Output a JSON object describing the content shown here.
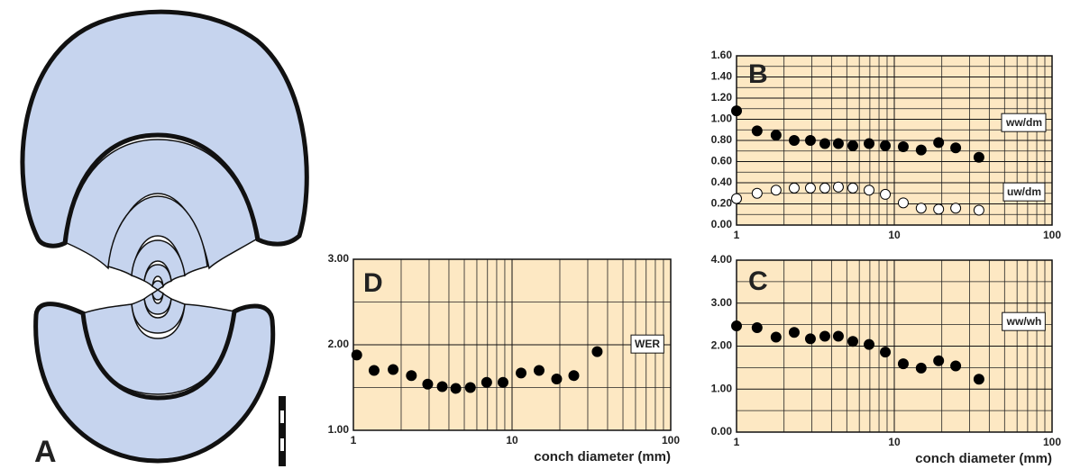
{
  "panel_a": {
    "label": "A"
  },
  "chart_data": [
    {
      "type": "scatter",
      "panel_label": "B",
      "xscale": "log",
      "x": [
        1.0,
        1.35,
        1.78,
        2.32,
        2.94,
        3.63,
        4.42,
        5.46,
        6.92,
        8.77,
        11.4,
        14.8,
        19.1,
        24.5,
        34.4
      ],
      "series": [
        {
          "name": "ww/dm",
          "color": "#000000",
          "values": [
            1.08,
            0.89,
            0.85,
            0.8,
            0.8,
            0.77,
            0.77,
            0.75,
            0.77,
            0.75,
            0.74,
            0.71,
            0.78,
            0.73,
            0.64
          ]
        },
        {
          "name": "uw/dm",
          "color": "#ffffff",
          "values": [
            0.25,
            0.3,
            0.33,
            0.35,
            0.35,
            0.35,
            0.36,
            0.35,
            0.33,
            0.29,
            0.21,
            0.16,
            0.15,
            0.16,
            0.14
          ]
        }
      ],
      "xlim": [
        1,
        100
      ],
      "xticks": [
        1,
        10,
        100
      ],
      "xminor": [
        2,
        3,
        4,
        5,
        6,
        7,
        8,
        9,
        20,
        30,
        40,
        50,
        60,
        70,
        80,
        90
      ],
      "ylim": [
        0,
        1.6
      ],
      "yticks": [
        {
          "value": 0,
          "label": "0.00"
        },
        {
          "value": 0.2,
          "label": "0.20"
        },
        {
          "value": 0.4,
          "label": "0.40"
        },
        {
          "value": 0.6,
          "label": "0.60"
        },
        {
          "value": 0.8,
          "label": "0.80"
        },
        {
          "value": 1.0,
          "label": "1.00"
        },
        {
          "value": 1.2,
          "label": "1.20"
        },
        {
          "value": 1.4,
          "label": "1.40"
        },
        {
          "value": 1.6,
          "label": "1.60"
        }
      ],
      "yminor": [
        0.1,
        0.3,
        0.5,
        0.7,
        0.9,
        1.1,
        1.3,
        1.5
      ],
      "grid": true
    },
    {
      "type": "scatter",
      "panel_label": "C",
      "xscale": "log",
      "xlabel": "conch diameter (mm)",
      "x": [
        1.0,
        1.35,
        1.78,
        2.32,
        2.94,
        3.63,
        4.42,
        5.46,
        6.92,
        8.77,
        11.4,
        14.8,
        19.1,
        24.5,
        34.4
      ],
      "series": [
        {
          "name": "ww/wh",
          "color": "#000000",
          "values": [
            2.47,
            2.43,
            2.21,
            2.32,
            2.17,
            2.23,
            2.23,
            2.11,
            2.04,
            1.86,
            1.59,
            1.49,
            1.66,
            1.54,
            1.23
          ]
        }
      ],
      "xlim": [
        1,
        100
      ],
      "xticks": [
        1,
        10,
        100
      ],
      "xminor": [
        2,
        3,
        4,
        5,
        6,
        7,
        8,
        9,
        20,
        30,
        40,
        50,
        60,
        70,
        80,
        90
      ],
      "ylim": [
        0,
        4
      ],
      "yticks": [
        {
          "value": 0,
          "label": "0.00"
        },
        {
          "value": 1,
          "label": "1.00"
        },
        {
          "value": 2,
          "label": "2.00"
        },
        {
          "value": 3,
          "label": "3.00"
        },
        {
          "value": 4,
          "label": "4.00"
        }
      ],
      "yminor": [
        0.5,
        1.5,
        2.5,
        3.5
      ],
      "grid": true
    },
    {
      "type": "scatter",
      "panel_label": "D",
      "xscale": "log",
      "xlabel": "conch diameter (mm)",
      "x": [
        1.05,
        1.35,
        1.78,
        2.32,
        2.94,
        3.63,
        4.42,
        5.46,
        6.92,
        8.77,
        11.4,
        14.8,
        19.1,
        24.5,
        34.4
      ],
      "series": [
        {
          "name": "WER",
          "color": "#000000",
          "values": [
            1.88,
            1.7,
            1.71,
            1.64,
            1.54,
            1.51,
            1.49,
            1.5,
            1.56,
            1.56,
            1.67,
            1.7,
            1.6,
            1.64,
            1.92
          ]
        }
      ],
      "xlim": [
        1,
        100
      ],
      "xticks": [
        1,
        10,
        100
      ],
      "xminor": [
        2,
        3,
        4,
        5,
        6,
        7,
        8,
        9,
        20,
        30,
        40,
        50,
        60,
        70,
        80,
        90
      ],
      "ylim": [
        1,
        3
      ],
      "yticks": [
        {
          "value": 1,
          "label": "1.00"
        },
        {
          "value": 2,
          "label": "2.00"
        },
        {
          "value": 3,
          "label": "3.00"
        }
      ],
      "yminor": [
        1.5,
        2.5
      ],
      "grid": true
    }
  ]
}
